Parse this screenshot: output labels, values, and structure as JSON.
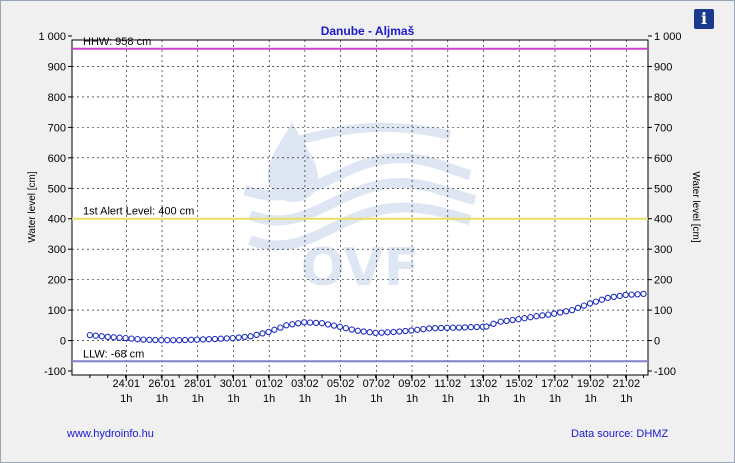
{
  "header": {
    "info_icon": "i"
  },
  "footer": {
    "website": "www.hydroinfo.hu",
    "source": "Data source: DHMZ"
  },
  "colors": {
    "hhw": "#d040d0",
    "alert": "#e8e060",
    "llw": "#8080c8",
    "series": "#2030c0",
    "marker_fill": "#ffffff",
    "title": "#1a1acc"
  },
  "watermark": {
    "text": "OVF"
  },
  "chart_data": {
    "type": "line",
    "title": "Danube - Aljmaš",
    "ylabel": "Water level [cm]",
    "ylabel_right": "Water level [cm]",
    "ylim": [
      -100,
      1000
    ],
    "yticks": [
      -100,
      0,
      100,
      200,
      300,
      400,
      500,
      600,
      700,
      800,
      900,
      1000
    ],
    "ytick_labels": [
      "-100",
      "0",
      "100",
      "200",
      "300",
      "400",
      "500",
      "600",
      "700",
      "800",
      "900",
      "1 000"
    ],
    "xlim": [
      "2024-01-22 00:00",
      "2024-02-21 00:00"
    ],
    "xticks": [
      {
        "date": "24.01",
        "hour": "1h",
        "t": 2.04
      },
      {
        "date": "26.01",
        "hour": "1h",
        "t": 4.04
      },
      {
        "date": "28.01",
        "hour": "1h",
        "t": 6.04
      },
      {
        "date": "30.01",
        "hour": "1h",
        "t": 8.04
      },
      {
        "date": "01.02",
        "hour": "1h",
        "t": 10.04
      },
      {
        "date": "03.02",
        "hour": "1h",
        "t": 12.04
      },
      {
        "date": "05.02",
        "hour": "1h",
        "t": 14.04
      },
      {
        "date": "07.02",
        "hour": "1h",
        "t": 16.04
      },
      {
        "date": "09.02",
        "hour": "1h",
        "t": 18.04
      },
      {
        "date": "11.02",
        "hour": "1h",
        "t": 20.04
      },
      {
        "date": "13.02",
        "hour": "1h",
        "t": 22.04
      },
      {
        "date": "15.02",
        "hour": "1h",
        "t": 24.04
      },
      {
        "date": "17.02",
        "hour": "1h",
        "t": 26.04
      },
      {
        "date": "19.02",
        "hour": "1h",
        "t": 28.04
      },
      {
        "date": "21.02",
        "hour": "1h",
        "t": 30.04
      }
    ],
    "reference_lines": [
      {
        "name": "HHW: 958 cm",
        "value": 958,
        "color": "#d040d0"
      },
      {
        "name": "1st Alert Level: 400 cm",
        "value": 400,
        "color": "#e8e060"
      },
      {
        "name": "LLW: -68 cm",
        "value": -68,
        "color": "#8080c8"
      }
    ],
    "grid": true,
    "series": [
      {
        "points": [
          [
            0,
            18
          ],
          [
            1,
            12
          ],
          [
            2,
            8
          ],
          [
            3,
            3
          ],
          [
            4,
            1
          ],
          [
            5,
            1
          ],
          [
            6,
            3
          ],
          [
            7,
            5
          ],
          [
            8,
            8
          ],
          [
            9,
            14
          ],
          [
            10,
            28
          ],
          [
            11,
            50
          ],
          [
            12,
            60
          ],
          [
            13,
            57
          ],
          [
            14,
            45
          ],
          [
            15,
            32
          ],
          [
            16,
            25
          ],
          [
            17,
            28
          ],
          [
            18,
            33
          ],
          [
            19,
            40
          ],
          [
            20,
            42
          ],
          [
            21,
            43
          ],
          [
            22,
            45
          ],
          [
            22.2,
            46
          ],
          [
            22.6,
            55
          ],
          [
            23,
            62
          ],
          [
            24,
            70
          ],
          [
            25,
            80
          ],
          [
            26,
            88
          ],
          [
            27,
            100
          ],
          [
            28,
            122
          ],
          [
            29,
            140
          ],
          [
            30,
            150
          ],
          [
            31,
            153
          ]
        ]
      }
    ]
  }
}
